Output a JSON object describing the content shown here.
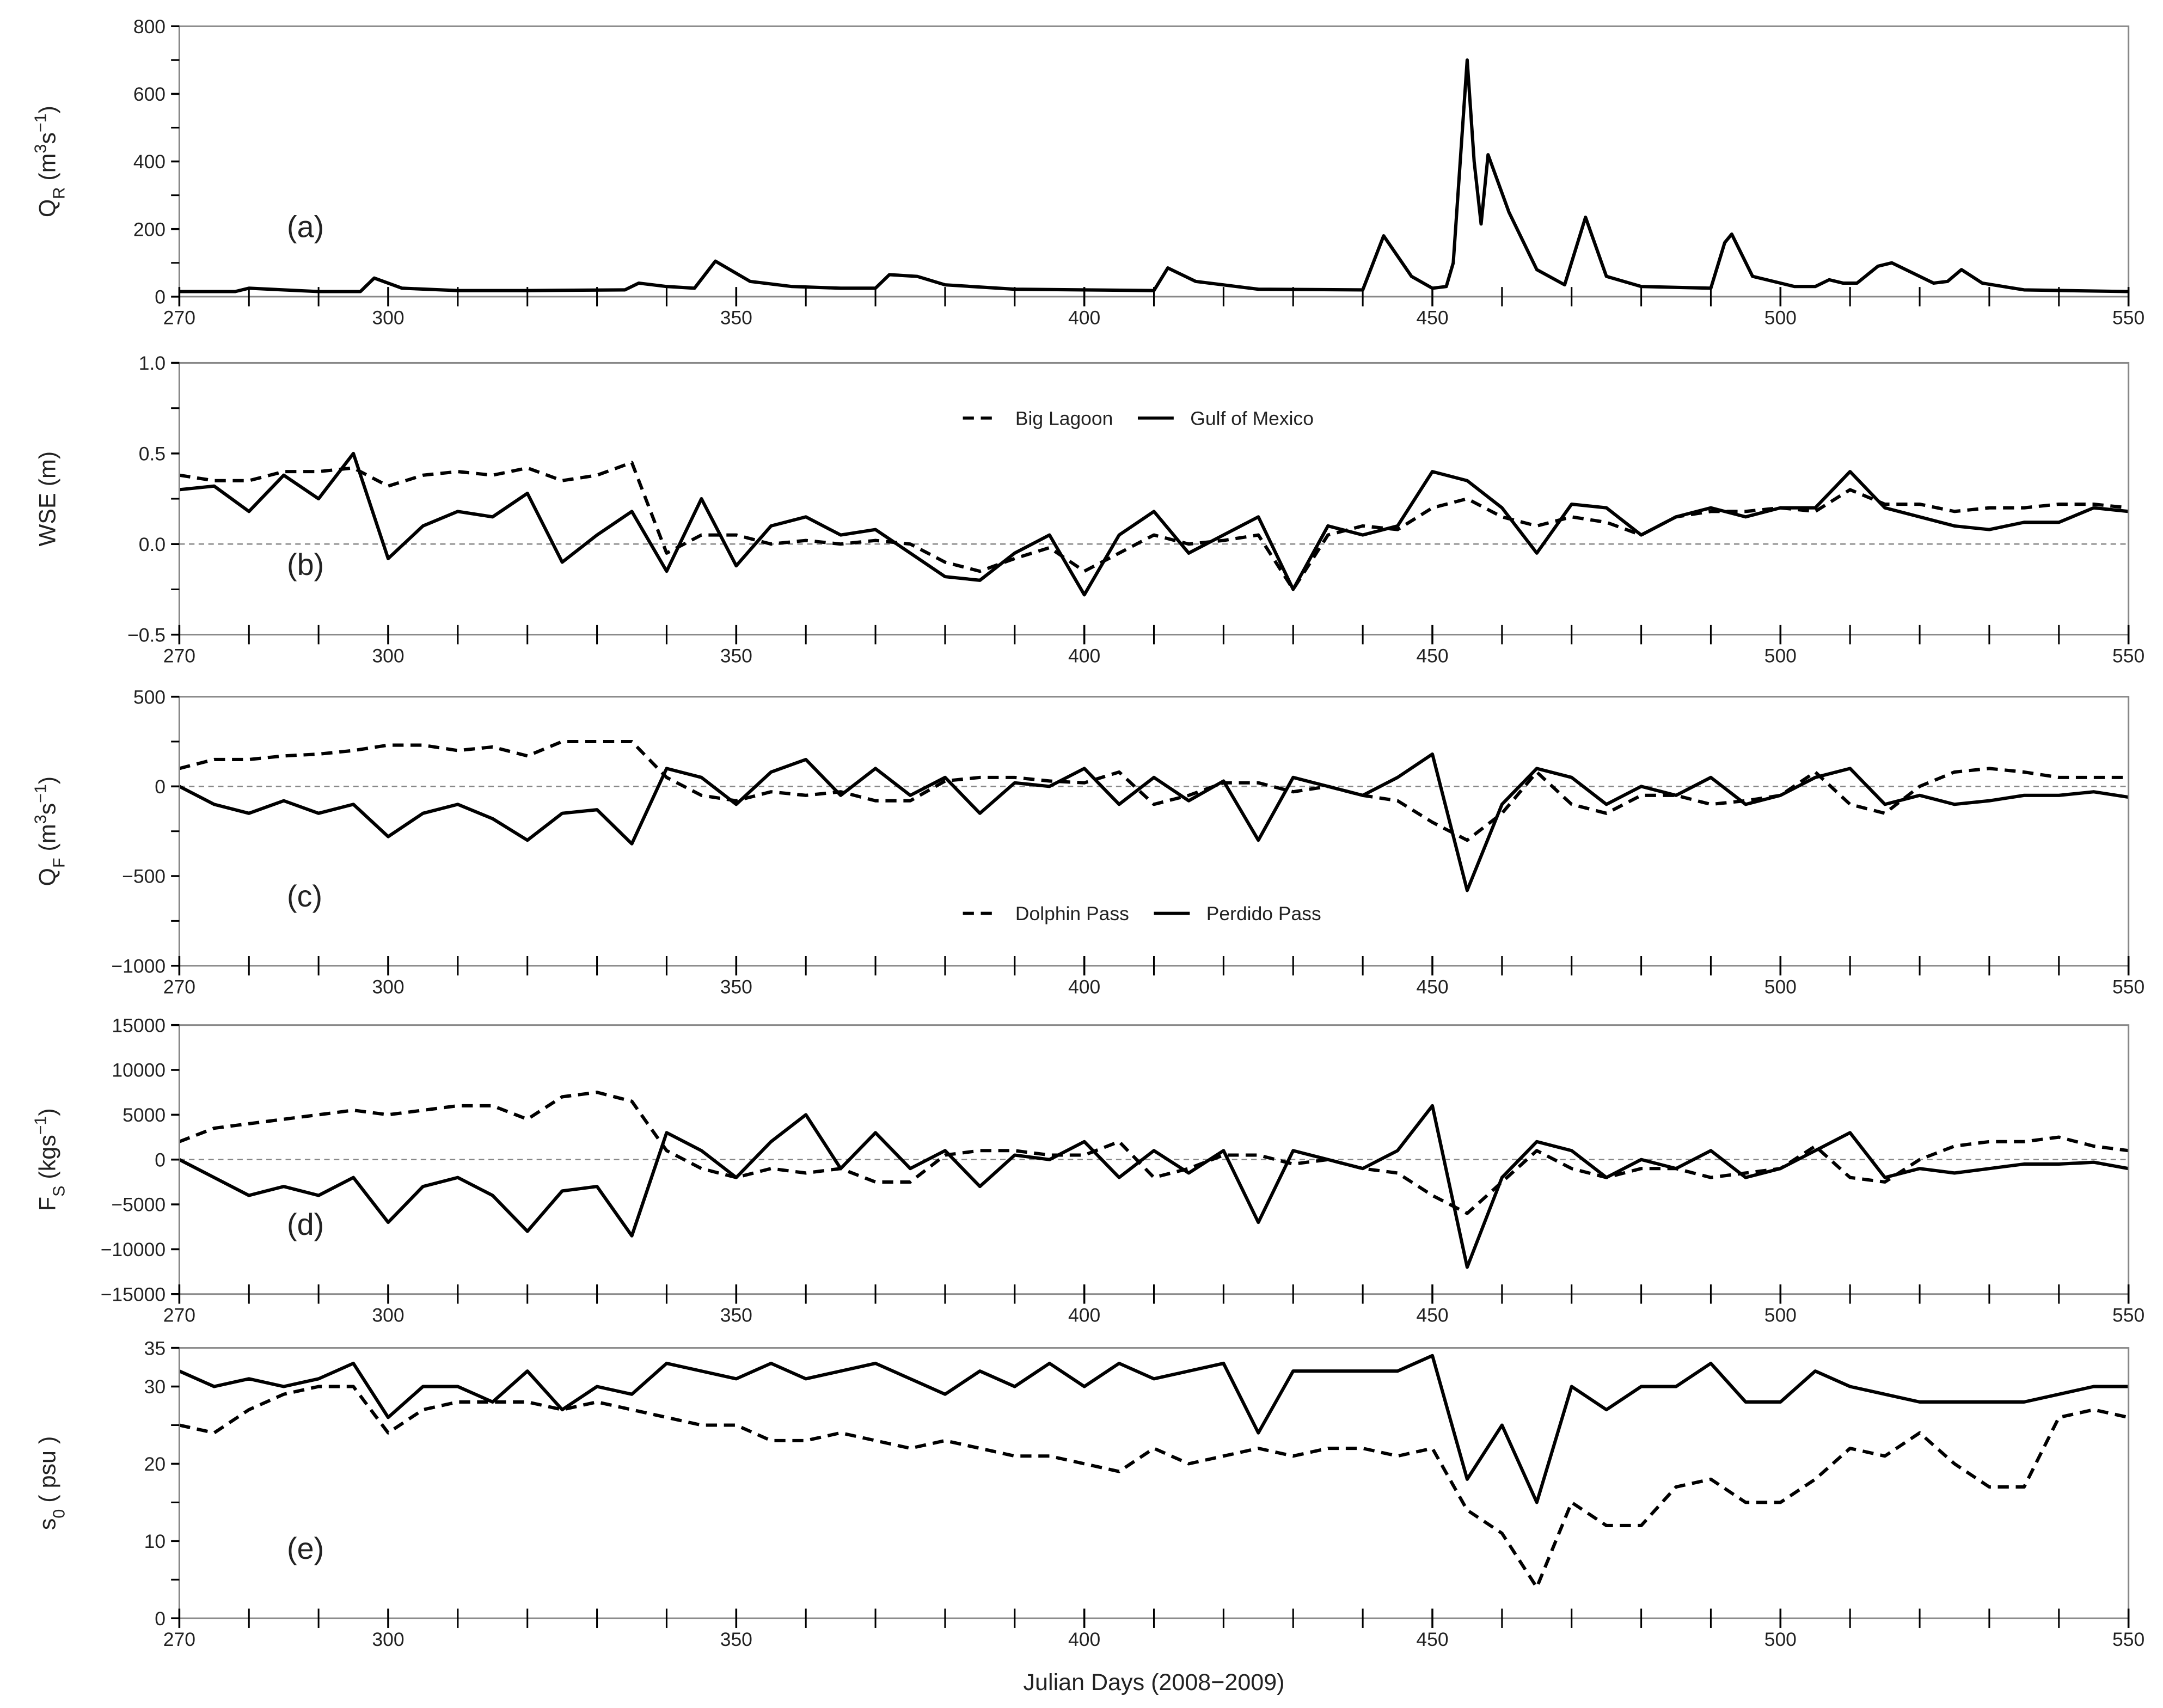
{
  "chart_data": [
    {
      "type": "line",
      "panel_label": "(a)",
      "ylabel": [
        {
          "text": "Q"
        },
        {
          "text": "R",
          "shift": "sub"
        },
        {
          "text": " (m"
        },
        {
          "text": "3",
          "shift": "super"
        },
        {
          "text": "s"
        },
        {
          "text": "−1",
          "shift": "super"
        },
        {
          "text": ")"
        }
      ],
      "x": [
        270,
        278,
        280,
        285,
        290,
        296,
        298,
        302,
        310,
        320,
        334,
        336,
        340,
        344,
        347,
        352,
        358,
        365,
        370,
        372,
        376,
        380,
        390,
        400,
        410,
        412,
        416,
        425,
        440,
        443,
        447,
        450,
        452,
        453,
        455,
        456,
        457,
        458,
        461,
        465,
        469,
        472,
        475,
        480,
        490,
        492,
        493,
        496,
        502,
        505,
        507,
        509,
        511,
        514,
        516,
        519,
        522,
        524,
        526,
        529,
        535,
        550
      ],
      "series": [
        {
          "color": "#000000",
          "linestyle": "solid",
          "values": [
            15,
            15,
            25,
            20,
            15,
            15,
            55,
            25,
            18,
            18,
            20,
            40,
            30,
            25,
            105,
            45,
            30,
            25,
            25,
            65,
            60,
            35,
            22,
            20,
            18,
            85,
            45,
            22,
            20,
            180,
            60,
            25,
            30,
            100,
            700,
            400,
            215,
            420,
            250,
            80,
            35,
            235,
            60,
            30,
            25,
            160,
            185,
            60,
            30,
            30,
            50,
            40,
            40,
            90,
            100,
            70,
            40,
            45,
            80,
            40,
            20,
            15
          ]
        }
      ],
      "xlim": [
        270,
        550
      ],
      "xticks": [
        270,
        300,
        350,
        400,
        450,
        500,
        550
      ],
      "xminorticks": [
        280,
        290,
        310,
        320,
        330,
        340,
        360,
        370,
        380,
        390,
        410,
        420,
        430,
        440,
        460,
        470,
        480,
        490,
        510,
        520,
        530,
        540
      ],
      "ylim": [
        0,
        800
      ],
      "yticks": [
        0,
        200,
        400,
        600,
        800
      ],
      "yminorticks": [
        100,
        300,
        500,
        700
      ],
      "zero_line": false
    },
    {
      "type": "line",
      "panel_label": "(b)",
      "ylabel": [
        {
          "text": "WSE (m)"
        }
      ],
      "legend": "top",
      "x": [
        270,
        275,
        280,
        285,
        290,
        295,
        300,
        305,
        310,
        315,
        320,
        325,
        330,
        335,
        340,
        345,
        350,
        355,
        360,
        365,
        370,
        375,
        380,
        385,
        390,
        395,
        400,
        405,
        410,
        415,
        420,
        425,
        430,
        435,
        440,
        445,
        450,
        455,
        460,
        465,
        470,
        475,
        480,
        485,
        490,
        495,
        500,
        505,
        510,
        515,
        520,
        525,
        530,
        535,
        540,
        545,
        550
      ],
      "series": [
        {
          "name": "Big Lagoon",
          "color": "#000000",
          "linestyle": "dashed",
          "values": [
            0.38,
            0.35,
            0.35,
            0.4,
            0.4,
            0.42,
            0.32,
            0.38,
            0.4,
            0.38,
            0.42,
            0.35,
            0.38,
            0.45,
            -0.05,
            0.05,
            0.05,
            0.0,
            0.02,
            0.0,
            0.02,
            0.0,
            -0.1,
            -0.15,
            -0.08,
            -0.02,
            -0.15,
            -0.05,
            0.05,
            0.0,
            0.02,
            0.05,
            -0.25,
            0.05,
            0.1,
            0.08,
            0.2,
            0.25,
            0.15,
            0.1,
            0.15,
            0.12,
            0.05,
            0.15,
            0.18,
            0.18,
            0.2,
            0.18,
            0.3,
            0.22,
            0.22,
            0.18,
            0.2,
            0.2,
            0.22,
            0.22,
            0.2
          ]
        },
        {
          "name": "Gulf of Mexico",
          "color": "#000000",
          "linestyle": "solid",
          "values": [
            0.3,
            0.32,
            0.18,
            0.38,
            0.25,
            0.5,
            -0.08,
            0.1,
            0.18,
            0.15,
            0.28,
            -0.1,
            0.05,
            0.18,
            -0.15,
            0.25,
            -0.12,
            0.1,
            0.15,
            0.05,
            0.08,
            -0.05,
            -0.18,
            -0.2,
            -0.05,
            0.05,
            -0.28,
            0.05,
            0.18,
            -0.05,
            0.05,
            0.15,
            -0.25,
            0.1,
            0.05,
            0.1,
            0.4,
            0.35,
            0.2,
            -0.05,
            0.22,
            0.2,
            0.05,
            0.15,
            0.2,
            0.15,
            0.2,
            0.2,
            0.4,
            0.2,
            0.15,
            0.1,
            0.08,
            0.12,
            0.12,
            0.2,
            0.18
          ]
        }
      ],
      "xlim": [
        270,
        550
      ],
      "xticks": [
        270,
        300,
        350,
        400,
        450,
        500,
        550
      ],
      "xminorticks": [
        280,
        290,
        310,
        320,
        330,
        340,
        360,
        370,
        380,
        390,
        410,
        420,
        430,
        440,
        460,
        470,
        480,
        490,
        510,
        520,
        530,
        540
      ],
      "ylim": [
        -0.5,
        1.0
      ],
      "yticks": [
        {
          "value": -0.5,
          "label": "−0.5"
        },
        {
          "value": 0,
          "label": "0.0"
        },
        {
          "value": 0.5,
          "label": "0.5"
        },
        {
          "value": 1.0,
          "label": "1.0"
        }
      ],
      "yminorticks": [
        -0.25,
        0.25,
        0.75
      ],
      "zero_line": true
    },
    {
      "type": "line",
      "panel_label": "(c)",
      "legend": "bottom",
      "ylabel": [
        {
          "text": "Q"
        },
        {
          "text": "F",
          "shift": "sub"
        },
        {
          "text": " (m"
        },
        {
          "text": "3",
          "shift": "super"
        },
        {
          "text": "s"
        },
        {
          "text": "−1",
          "shift": "super"
        },
        {
          "text": ")"
        }
      ],
      "x": [
        270,
        275,
        280,
        285,
        290,
        295,
        300,
        305,
        310,
        315,
        320,
        325,
        330,
        335,
        340,
        345,
        350,
        355,
        360,
        365,
        370,
        375,
        380,
        385,
        390,
        395,
        400,
        405,
        410,
        415,
        420,
        425,
        430,
        435,
        440,
        445,
        450,
        455,
        460,
        465,
        470,
        475,
        480,
        485,
        490,
        495,
        500,
        505,
        510,
        515,
        520,
        525,
        530,
        535,
        540,
        545,
        550
      ],
      "series": [
        {
          "name": "Dolphin Pass",
          "color": "#000000",
          "linestyle": "dashed",
          "values": [
            100,
            150,
            150,
            170,
            180,
            200,
            230,
            230,
            200,
            220,
            170,
            250,
            250,
            250,
            50,
            -50,
            -80,
            -30,
            -50,
            -30,
            -80,
            -80,
            30,
            50,
            50,
            30,
            20,
            80,
            -100,
            -50,
            20,
            20,
            -30,
            0,
            -50,
            -80,
            -200,
            -300,
            -150,
            80,
            -100,
            -150,
            -50,
            -50,
            -100,
            -80,
            -50,
            80,
            -100,
            -150,
            0,
            80,
            100,
            80,
            50,
            50,
            50
          ]
        },
        {
          "name": "Perdido Pass",
          "color": "#000000",
          "linestyle": "solid",
          "values": [
            0,
            -100,
            -150,
            -80,
            -150,
            -100,
            -280,
            -150,
            -100,
            -180,
            -300,
            -150,
            -130,
            -320,
            100,
            50,
            -100,
            80,
            150,
            -50,
            100,
            -50,
            50,
            -150,
            20,
            0,
            100,
            -100,
            50,
            -80,
            30,
            -300,
            50,
            0,
            -50,
            50,
            180,
            -580,
            -100,
            100,
            50,
            -100,
            0,
            -50,
            50,
            -100,
            -50,
            50,
            100,
            -100,
            -50,
            -100,
            -80,
            -50,
            -50,
            -30,
            -60
          ]
        }
      ],
      "xlim": [
        270,
        550
      ],
      "xticks": [
        270,
        300,
        350,
        400,
        450,
        500,
        550
      ],
      "xminorticks": [
        280,
        290,
        310,
        320,
        330,
        340,
        360,
        370,
        380,
        390,
        410,
        420,
        430,
        440,
        460,
        470,
        480,
        490,
        510,
        520,
        530,
        540
      ],
      "ylim": [
        -1000,
        500
      ],
      "yticks": [
        {
          "value": -1000,
          "label": "−1000"
        },
        {
          "value": -500,
          "label": "−500"
        },
        0,
        500
      ],
      "yminorticks": [
        -750,
        -250,
        250
      ],
      "zero_line": true
    },
    {
      "type": "line",
      "panel_label": "(d)",
      "ylabel": [
        {
          "text": "F"
        },
        {
          "text": "S",
          "shift": "sub"
        },
        {
          "text": " (kgs"
        },
        {
          "text": "−1",
          "shift": "super"
        },
        {
          "text": ")"
        }
      ],
      "x": [
        270,
        275,
        280,
        285,
        290,
        295,
        300,
        305,
        310,
        315,
        320,
        325,
        330,
        335,
        340,
        345,
        350,
        355,
        360,
        365,
        370,
        375,
        380,
        385,
        390,
        395,
        400,
        405,
        410,
        415,
        420,
        425,
        430,
        435,
        440,
        445,
        450,
        455,
        460,
        465,
        470,
        475,
        480,
        485,
        490,
        495,
        500,
        505,
        510,
        515,
        520,
        525,
        530,
        535,
        540,
        545,
        550
      ],
      "series": [
        {
          "color": "#000000",
          "linestyle": "dashed",
          "values": [
            2000,
            3500,
            4000,
            4500,
            5000,
            5500,
            5000,
            5500,
            6000,
            6000,
            4500,
            7000,
            7500,
            6500,
            1000,
            -1000,
            -2000,
            -1000,
            -1500,
            -1000,
            -2500,
            -2500,
            500,
            1000,
            1000,
            500,
            500,
            2000,
            -2000,
            -1000,
            500,
            500,
            -500,
            0,
            -1000,
            -1500,
            -4000,
            -6000,
            -2500,
            1000,
            -1000,
            -2000,
            -1000,
            -1000,
            -2000,
            -1500,
            -1000,
            1500,
            -2000,
            -2500,
            0,
            1500,
            2000,
            2000,
            2500,
            1500,
            1000
          ]
        },
        {
          "color": "#000000",
          "linestyle": "solid",
          "values": [
            0,
            -2000,
            -4000,
            -3000,
            -4000,
            -2000,
            -7000,
            -3000,
            -2000,
            -4000,
            -8000,
            -3500,
            -3000,
            -8500,
            3000,
            1000,
            -2000,
            2000,
            5000,
            -1000,
            3000,
            -1000,
            1000,
            -3000,
            500,
            0,
            2000,
            -2000,
            1000,
            -1500,
            1000,
            -7000,
            1000,
            0,
            -1000,
            1000,
            6000,
            -12000,
            -2000,
            2000,
            1000,
            -2000,
            0,
            -1000,
            1000,
            -2000,
            -1000,
            1000,
            3000,
            -2000,
            -1000,
            -1500,
            -1000,
            -500,
            -500,
            -300,
            -1000
          ]
        }
      ],
      "xlim": [
        270,
        550
      ],
      "xticks": [
        270,
        300,
        350,
        400,
        450,
        500,
        550
      ],
      "xminorticks": [
        280,
        290,
        310,
        320,
        330,
        340,
        360,
        370,
        380,
        390,
        410,
        420,
        430,
        440,
        460,
        470,
        480,
        490,
        510,
        520,
        530,
        540
      ],
      "ylim": [
        -15000,
        15000
      ],
      "yticks": [
        {
          "value": -15000,
          "label": "−15000"
        },
        {
          "value": -10000,
          "label": "−10000"
        },
        {
          "value": -5000,
          "label": "−5000"
        },
        0,
        5000,
        10000,
        15000
      ],
      "zero_line": true
    },
    {
      "type": "line",
      "panel_label": "(e)",
      "ylabel": [
        {
          "text": "s"
        },
        {
          "text": "0",
          "shift": "sub"
        },
        {
          "text": " ( psu )"
        }
      ],
      "xlabel": "Julian Days (2008−2009)",
      "x": [
        270,
        275,
        280,
        285,
        290,
        295,
        300,
        305,
        310,
        315,
        320,
        325,
        330,
        335,
        340,
        345,
        350,
        355,
        360,
        365,
        370,
        375,
        380,
        385,
        390,
        395,
        400,
        405,
        410,
        415,
        420,
        425,
        430,
        435,
        440,
        445,
        450,
        455,
        460,
        465,
        470,
        475,
        480,
        485,
        490,
        495,
        500,
        505,
        510,
        515,
        520,
        525,
        530,
        535,
        540,
        545,
        550
      ],
      "series": [
        {
          "color": "#000000",
          "linestyle": "dashed",
          "values": [
            25,
            24,
            27,
            29,
            30,
            30,
            24,
            27,
            28,
            28,
            28,
            27,
            28,
            27,
            26,
            25,
            25,
            23,
            23,
            24,
            23,
            22,
            23,
            22,
            21,
            21,
            20,
            19,
            22,
            20,
            21,
            22,
            21,
            22,
            22,
            21,
            22,
            14,
            11,
            4,
            15,
            12,
            12,
            17,
            18,
            15,
            15,
            18,
            22,
            21,
            24,
            20,
            17,
            17,
            26,
            27,
            26
          ]
        },
        {
          "color": "#000000",
          "linestyle": "solid",
          "values": [
            32,
            30,
            31,
            30,
            31,
            33,
            26,
            30,
            30,
            28,
            32,
            27,
            30,
            29,
            33,
            32,
            31,
            33,
            31,
            32,
            33,
            31,
            29,
            32,
            30,
            33,
            30,
            33,
            31,
            32,
            33,
            24,
            32,
            32,
            32,
            32,
            34,
            18,
            25,
            15,
            30,
            27,
            30,
            30,
            33,
            28,
            28,
            32,
            30,
            29,
            28,
            28,
            28,
            28,
            29,
            30,
            30
          ]
        }
      ],
      "xlim": [
        270,
        550
      ],
      "xticks": [
        270,
        300,
        350,
        400,
        450,
        500,
        550
      ],
      "xminorticks": [
        280,
        290,
        310,
        320,
        330,
        340,
        360,
        370,
        380,
        390,
        410,
        420,
        430,
        440,
        460,
        470,
        480,
        490,
        510,
        520,
        530,
        540
      ],
      "ylim": [
        0,
        35
      ],
      "yticks": [
        0,
        10,
        20,
        30,
        35
      ],
      "yminorticks": [
        5,
        15,
        25
      ],
      "zero_line": false
    }
  ]
}
